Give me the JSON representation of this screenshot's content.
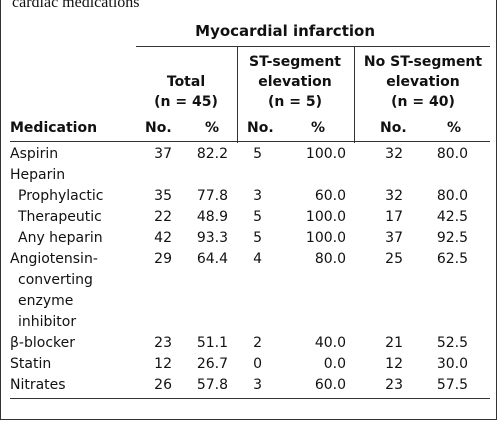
{
  "caption": "cardiac medications",
  "super_header": "Myocardial infarction",
  "groups": {
    "total": [
      "Total",
      "(n = 45)"
    ],
    "st": [
      "ST-segment",
      "elevation",
      "(n = 5)"
    ],
    "nost": [
      "No ST-segment",
      "elevation",
      "(n = 40)"
    ]
  },
  "columns": {
    "medication": "Medication",
    "no1": "No.",
    "pct1": "%",
    "no2": "No.",
    "pct2": "%",
    "no3": "No.",
    "pct3": "%"
  },
  "rows": [
    {
      "label": "Aspirin",
      "indent": false,
      "v": [
        "37",
        "82.2",
        "5",
        "100.0",
        "32",
        "80.0"
      ]
    },
    {
      "label": "Heparin",
      "indent": false,
      "v": [
        "",
        "",
        "",
        "",
        "",
        ""
      ]
    },
    {
      "label": "Prophylactic",
      "indent": true,
      "v": [
        "35",
        "77.8",
        "3",
        "60.0",
        "32",
        "80.0"
      ]
    },
    {
      "label": "Therapeutic",
      "indent": true,
      "v": [
        "22",
        "48.9",
        "5",
        "100.0",
        "17",
        "42.5"
      ]
    },
    {
      "label": "Any heparin",
      "indent": true,
      "v": [
        "42",
        "93.3",
        "5",
        "100.0",
        "37",
        "92.5"
      ]
    },
    {
      "label": "Angiotensin-",
      "indent": false,
      "v": [
        "29",
        "64.4",
        "4",
        "80.0",
        "25",
        "62.5"
      ]
    },
    {
      "label": "converting",
      "indent": true,
      "v": [
        "",
        "",
        "",
        "",
        "",
        ""
      ]
    },
    {
      "label": "enzyme",
      "indent": true,
      "v": [
        "",
        "",
        "",
        "",
        "",
        ""
      ]
    },
    {
      "label": "inhibitor",
      "indent": true,
      "v": [
        "",
        "",
        "",
        "",
        "",
        ""
      ]
    },
    {
      "label": "β-blocker",
      "indent": false,
      "v": [
        "23",
        "51.1",
        "2",
        "40.0",
        "21",
        "52.5"
      ]
    },
    {
      "label": "Statin",
      "indent": false,
      "v": [
        "12",
        "26.7",
        "0",
        "0.0",
        "12",
        "30.0"
      ]
    },
    {
      "label": "Nitrates",
      "indent": false,
      "v": [
        "26",
        "57.8",
        "3",
        "60.0",
        "23",
        "57.5"
      ]
    }
  ]
}
